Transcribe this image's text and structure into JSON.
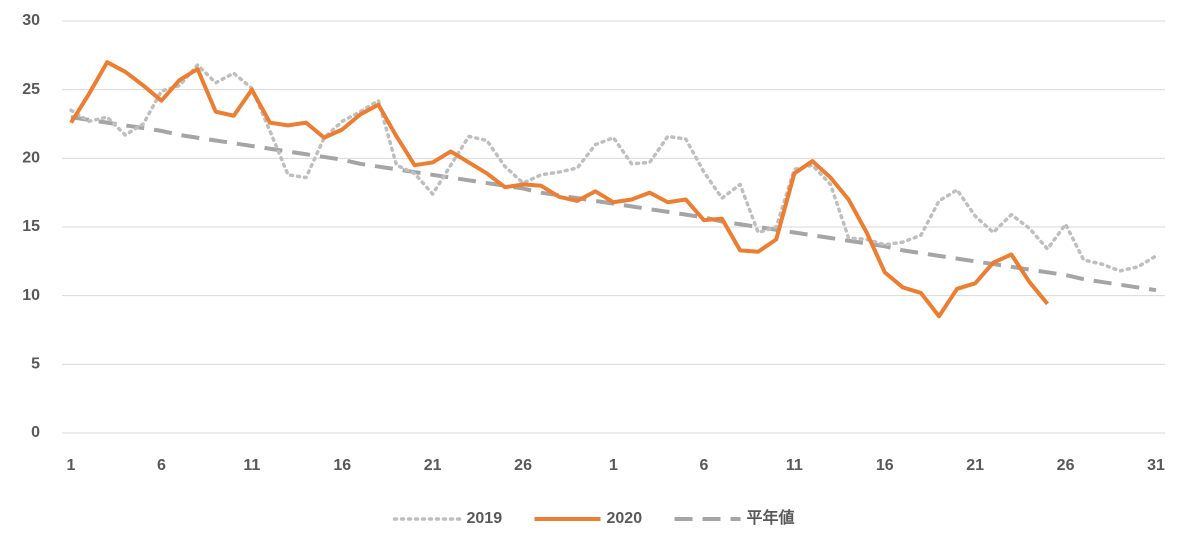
{
  "chart_data": {
    "type": "line",
    "categories": [
      "1",
      null,
      null,
      null,
      null,
      "6",
      null,
      null,
      null,
      null,
      "11",
      null,
      null,
      null,
      null,
      "16",
      null,
      null,
      null,
      null,
      "21",
      null,
      null,
      null,
      null,
      "26",
      null,
      null,
      null,
      null,
      "1",
      null,
      null,
      null,
      null,
      "6",
      null,
      null,
      null,
      null,
      "11",
      null,
      null,
      null,
      null,
      "16",
      null,
      null,
      null,
      null,
      "21",
      null,
      null,
      null,
      null,
      "26",
      null,
      null,
      null,
      null,
      "31"
    ],
    "series": [
      {
        "name": "2019",
        "color": "#bfbfbf",
        "style": "dotted",
        "values": [
          23.5,
          22.7,
          23.0,
          21.7,
          22.5,
          24.9,
          25.3,
          26.8,
          25.5,
          26.2,
          25.1,
          22.0,
          18.8,
          18.6,
          21.5,
          22.7,
          23.4,
          24.2,
          19.5,
          18.9,
          17.4,
          19.5,
          21.6,
          21.3,
          19.4,
          18.2,
          18.8,
          19.0,
          19.3,
          21.0,
          21.5,
          19.6,
          19.7,
          21.6,
          21.4,
          19.0,
          17.1,
          18.1,
          14.6,
          15.0,
          19.2,
          19.5,
          18.1,
          14.2,
          14.1,
          13.7,
          13.9,
          14.4,
          16.9,
          17.7,
          15.8,
          14.6,
          15.9,
          14.9,
          13.4,
          15.2,
          12.6,
          12.3,
          11.8,
          12.1,
          12.9
        ]
      },
      {
        "name": "2020",
        "color": "#ed7d31",
        "style": "solid",
        "values": [
          22.6,
          24.7,
          27.0,
          26.3,
          25.3,
          24.2,
          25.7,
          26.5,
          23.4,
          23.1,
          25.0,
          22.6,
          22.4,
          22.6,
          21.5,
          22.1,
          23.2,
          23.9,
          21.6,
          19.5,
          19.7,
          20.5,
          19.7,
          18.9,
          17.9,
          18.1,
          18.0,
          17.2,
          16.9,
          17.6,
          16.8,
          17.0,
          17.5,
          16.8,
          17.0,
          15.5,
          15.6,
          13.3,
          13.2,
          14.1,
          18.9,
          19.8,
          18.6,
          17.0,
          14.6,
          11.7,
          10.6,
          10.2,
          8.5,
          10.5,
          10.9,
          12.4,
          13.0,
          11.0,
          9.4,
          null,
          null,
          null,
          null,
          null,
          null
        ]
      },
      {
        "name": "平年値",
        "color": "#a5a5a5",
        "style": "dashed",
        "values": [
          23.0,
          22.8,
          22.6,
          22.4,
          22.2,
          22.0,
          21.7,
          21.5,
          21.3,
          21.1,
          20.9,
          20.7,
          20.5,
          20.3,
          20.1,
          19.9,
          19.6,
          19.4,
          19.2,
          19.0,
          18.8,
          18.6,
          18.4,
          18.2,
          18.0,
          17.8,
          17.5,
          17.3,
          17.1,
          16.9,
          16.7,
          16.5,
          16.3,
          16.1,
          15.9,
          15.7,
          15.4,
          15.2,
          15.0,
          14.8,
          14.6,
          14.4,
          14.2,
          14.0,
          13.8,
          13.6,
          13.3,
          13.1,
          12.9,
          12.7,
          12.5,
          12.3,
          12.1,
          11.9,
          11.7,
          11.5,
          11.2,
          11.0,
          10.8,
          10.6,
          10.4
        ]
      }
    ],
    "ylim": [
      0,
      30
    ],
    "yticks": [
      0,
      5,
      10,
      15,
      20,
      25,
      30
    ],
    "grid": true,
    "legend": "bottom"
  }
}
